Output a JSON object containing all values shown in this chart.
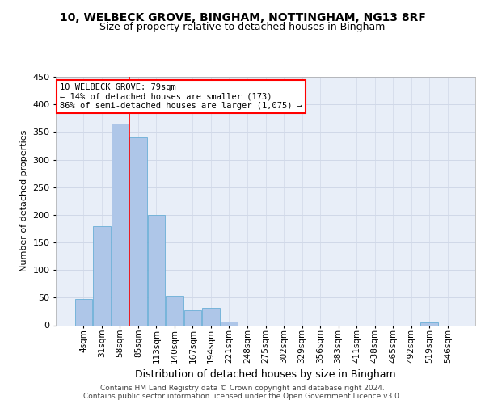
{
  "title_line1": "10, WELBECK GROVE, BINGHAM, NOTTINGHAM, NG13 8RF",
  "title_line2": "Size of property relative to detached houses in Bingham",
  "xlabel": "Distribution of detached houses by size in Bingham",
  "ylabel": "Number of detached properties",
  "categories": [
    "4sqm",
    "31sqm",
    "58sqm",
    "85sqm",
    "113sqm",
    "140sqm",
    "167sqm",
    "194sqm",
    "221sqm",
    "248sqm",
    "275sqm",
    "302sqm",
    "329sqm",
    "356sqm",
    "383sqm",
    "411sqm",
    "438sqm",
    "465sqm",
    "492sqm",
    "519sqm",
    "546sqm"
  ],
  "bar_heights": [
    48,
    180,
    365,
    340,
    200,
    53,
    27,
    31,
    6,
    0,
    0,
    0,
    0,
    0,
    0,
    0,
    0,
    0,
    0,
    5,
    0
  ],
  "bar_color": "#aec6e8",
  "bar_edge_color": "#6aaed6",
  "vline_color": "red",
  "vline_pos": 2.5,
  "annotation_text": "10 WELBECK GROVE: 79sqm\n← 14% of detached houses are smaller (173)\n86% of semi-detached houses are larger (1,075) →",
  "annotation_box_color": "white",
  "annotation_box_edge_color": "red",
  "ylim_max": 450,
  "yticks": [
    0,
    50,
    100,
    150,
    200,
    250,
    300,
    350,
    400,
    450
  ],
  "grid_color": "#d0d8e8",
  "background_color": "#e8eef8",
  "footer_line1": "Contains HM Land Registry data © Crown copyright and database right 2024.",
  "footer_line2": "Contains public sector information licensed under the Open Government Licence v3.0.",
  "title_fontsize": 10,
  "subtitle_fontsize": 9,
  "annotation_fontsize": 7.5,
  "footer_fontsize": 6.5,
  "ylabel_fontsize": 8,
  "xlabel_fontsize": 9,
  "tick_fontsize": 7.5,
  "ytick_fontsize": 8
}
